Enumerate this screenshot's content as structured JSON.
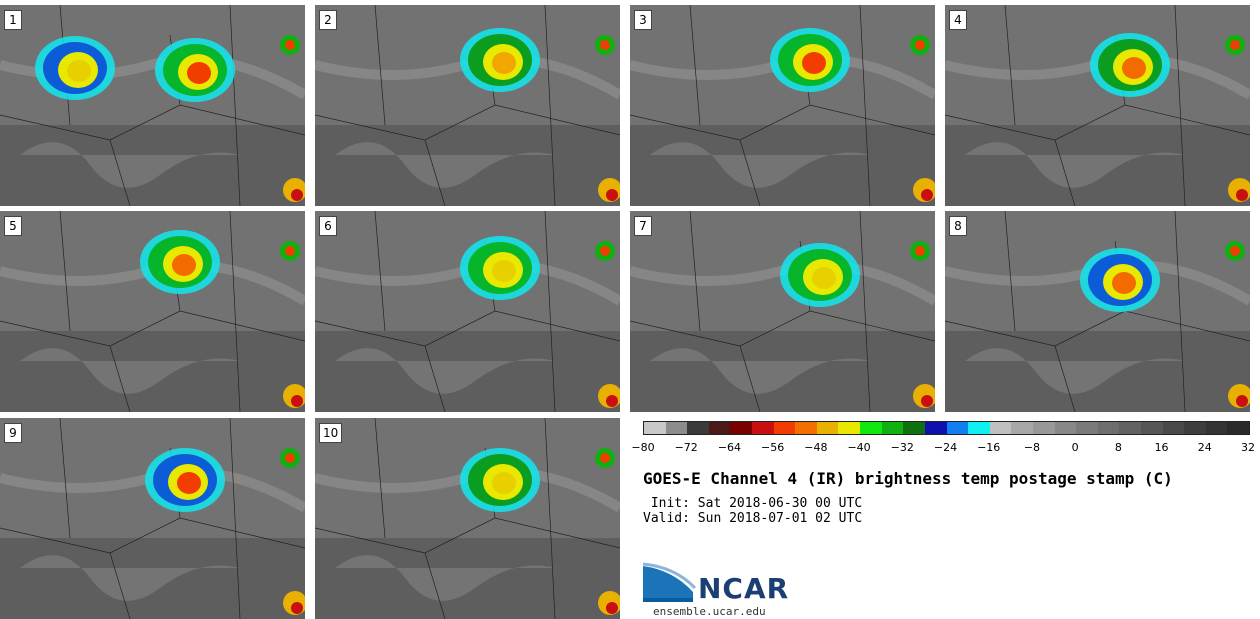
{
  "panels": [
    {
      "label": "1",
      "storms": [
        {
          "c": "#f23c00",
          "b": "#06b52a"
        },
        {
          "c": "#e8d000",
          "b": "#0b5cd6"
        }
      ]
    },
    {
      "label": "2",
      "storms": [
        {
          "c": "#f2a700",
          "b": "#0b9d1f"
        }
      ]
    },
    {
      "label": "3",
      "storms": [
        {
          "c": "#f23c00",
          "b": "#06b52a"
        }
      ]
    },
    {
      "label": "4",
      "storms": [
        {
          "c": "#f26a00",
          "b": "#0b9d1f"
        }
      ]
    },
    {
      "label": "5",
      "storms": [
        {
          "c": "#f26a00",
          "b": "#06b52a"
        }
      ]
    },
    {
      "label": "6",
      "storms": [
        {
          "c": "#e8d000",
          "b": "#06b52a"
        }
      ]
    },
    {
      "label": "7",
      "storms": [
        {
          "c": "#e8d000",
          "b": "#06b52a"
        }
      ]
    },
    {
      "label": "8",
      "storms": [
        {
          "c": "#f26a00",
          "b": "#0b5cd6"
        }
      ]
    },
    {
      "label": "9",
      "storms": [
        {
          "c": "#f23c00",
          "b": "#0b5cd6"
        }
      ]
    },
    {
      "label": "10",
      "storms": [
        {
          "c": "#e8d000",
          "b": "#0b9d1f"
        }
      ]
    }
  ],
  "colorbar": {
    "colors": [
      "#c8c8c8",
      "#8c8c8c",
      "#3a3a3a",
      "#4a1a1a",
      "#7a0000",
      "#c81010",
      "#f23c00",
      "#f27000",
      "#e8b000",
      "#e8e800",
      "#10e810",
      "#10b010",
      "#107010",
      "#1010b0",
      "#1080f0",
      "#10f0f0",
      "#c0c0c0",
      "#a8a8a8",
      "#989898",
      "#888888",
      "#7a7a7a",
      "#6e6e6e",
      "#626262",
      "#565656",
      "#4a4a4a",
      "#3e3e3e",
      "#343434",
      "#2a2a2a"
    ],
    "tick_labels": [
      "−80",
      "−72",
      "−64",
      "−56",
      "−48",
      "−40",
      "−32",
      "−24",
      "−16",
      "−8",
      "0",
      "8",
      "16",
      "24",
      "32"
    ]
  },
  "title": "GOES-E Channel 4 (IR) brightness temp postage stamp (C)",
  "init_text": " Init: Sat 2018-06-30 00 UTC",
  "valid_text": "Valid: Sun 2018-07-01 02 UTC",
  "logo_text": "NCAR",
  "url": "ensemble.ucar.edu"
}
